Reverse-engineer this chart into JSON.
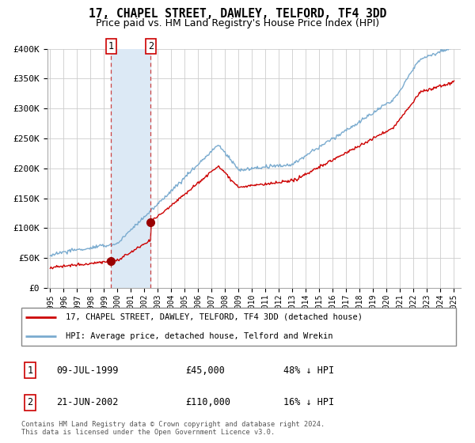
{
  "title": "17, CHAPEL STREET, DAWLEY, TELFORD, TF4 3DD",
  "subtitle": "Price paid vs. HM Land Registry's House Price Index (HPI)",
  "title_fontsize": 10.5,
  "subtitle_fontsize": 9,
  "ylim": [
    0,
    400000
  ],
  "yticks": [
    0,
    50000,
    100000,
    150000,
    200000,
    250000,
    300000,
    350000,
    400000
  ],
  "ytick_labels": [
    "£0",
    "£50K",
    "£100K",
    "£150K",
    "£200K",
    "£250K",
    "£300K",
    "£350K",
    "£400K"
  ],
  "xlim_start": 1994.8,
  "xlim_end": 2025.5,
  "sale1_x": 1999.52,
  "sale1_y": 45000,
  "sale2_x": 2002.47,
  "sale2_y": 110000,
  "sale1_date": "09-JUL-1999",
  "sale1_price": "£45,000",
  "sale1_hpi": "48% ↓ HPI",
  "sale2_date": "21-JUN-2002",
  "sale2_price": "£110,000",
  "sale2_hpi": "16% ↓ HPI",
  "red_line_color": "#cc0000",
  "blue_line_color": "#7aabcf",
  "sale_marker_color": "#990000",
  "background_color": "#ffffff",
  "grid_color": "#cccccc",
  "shaded_color": "#dce9f5",
  "legend_label_red": "17, CHAPEL STREET, DAWLEY, TELFORD, TF4 3DD (detached house)",
  "legend_label_blue": "HPI: Average price, detached house, Telford and Wrekin",
  "footer": "Contains HM Land Registry data © Crown copyright and database right 2024.\nThis data is licensed under the Open Government Licence v3.0."
}
